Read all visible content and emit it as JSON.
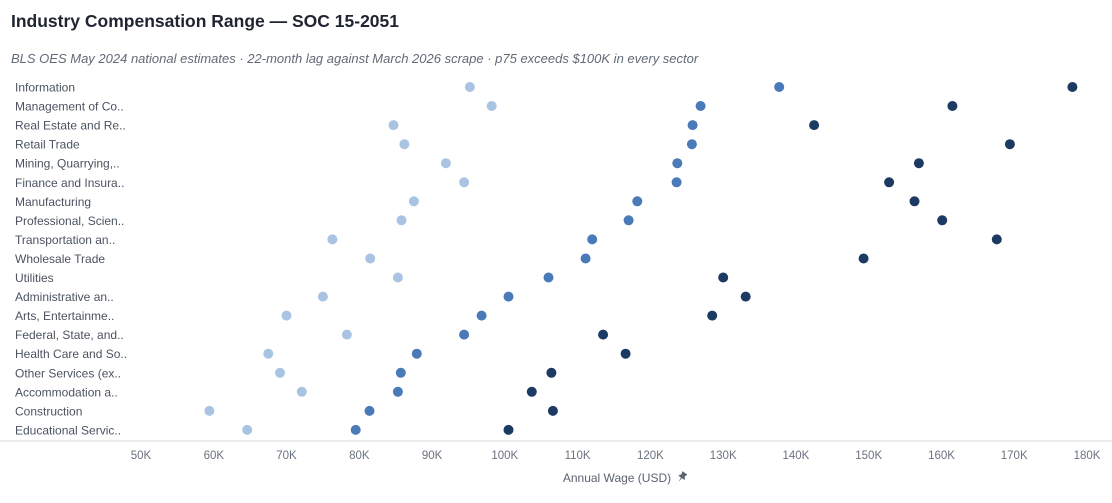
{
  "title": "Industry Compensation Range — SOC 15-2051",
  "subtitle": "BLS OES May 2024 national estimates · 22-month lag against March 2026 scrape · p75 exceeds $100K in every sector",
  "chart_data": {
    "type": "scatter",
    "title": "Industry Compensation Range — SOC 15-2051",
    "subtitle": "BLS OES May 2024 national estimates · 22-month lag against March 2026 scrape · p75 exceeds $100K in every sector",
    "xlabel": "Annual Wage (USD)",
    "ylabel": "",
    "xlim": [
      50000,
      180000
    ],
    "xticks": [
      50000,
      60000,
      70000,
      80000,
      90000,
      100000,
      110000,
      120000,
      130000,
      140000,
      150000,
      160000,
      170000,
      180000
    ],
    "xtick_labels": [
      "50K",
      "60K",
      "70K",
      "80K",
      "90K",
      "100K",
      "110K",
      "120K",
      "130K",
      "140K",
      "150K",
      "160K",
      "170K",
      "180K"
    ],
    "grid": false,
    "legend": "none",
    "categories": [
      "Information",
      "Management of Co..",
      "Real Estate and Re..",
      "Retail Trade",
      "Mining, Quarrying,..",
      "Finance and Insura..",
      "Manufacturing",
      "Professional, Scien..",
      "Transportation an..",
      "Wholesale Trade",
      "Utilities",
      "Administrative an..",
      "Arts, Entertainme..",
      "Federal, State, and..",
      "Health Care and So..",
      "Other Services (ex..",
      "Accommodation a..",
      "Construction",
      "Educational Servic.."
    ],
    "series": [
      {
        "color": "#a9c4e2",
        "values": [
          95200,
          98200,
          84700,
          86200,
          91900,
          94400,
          87500,
          85800,
          76300,
          81500,
          85300,
          75000,
          70000,
          78300,
          67500,
          69100,
          72100,
          59400,
          64600
        ]
      },
      {
        "color": "#4a7ab8",
        "values": [
          137700,
          126900,
          125800,
          125700,
          123700,
          123600,
          118200,
          117000,
          112000,
          111100,
          106000,
          100500,
          96800,
          94400,
          87900,
          85700,
          85300,
          81400,
          79500
        ]
      },
      {
        "color": "#1d3a63",
        "values": [
          178000,
          161500,
          142500,
          169400,
          156900,
          152800,
          156300,
          160100,
          167600,
          149300,
          130000,
          133100,
          128500,
          113500,
          116600,
          106400,
          103700,
          106600,
          100500
        ]
      }
    ]
  },
  "axis_icon": "pin-icon",
  "colors": {
    "text_dark": "#1f2430",
    "axis_line": "#d4d8de"
  }
}
